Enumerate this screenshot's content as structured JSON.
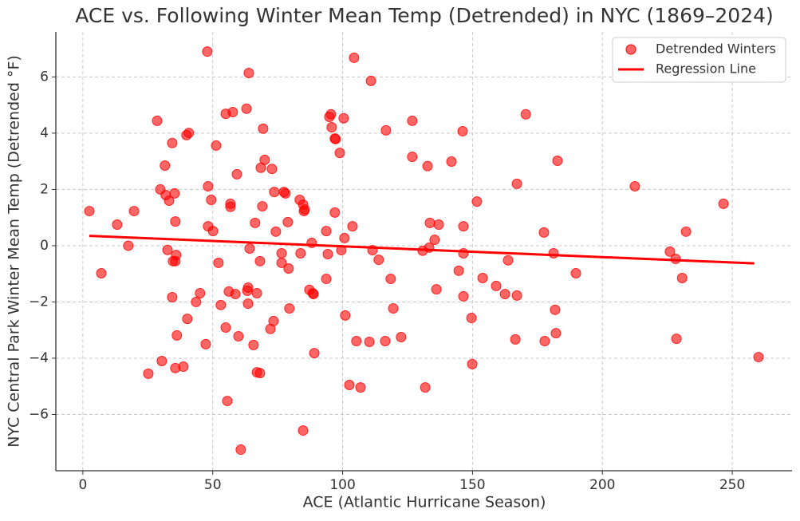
{
  "chart_data": {
    "type": "scatter",
    "title": "ACE vs. Following Winter Mean Temp (Detrended) in NYC (1869–2024)",
    "xlabel": "ACE (Atlantic Hurricane Season)",
    "ylabel": "NYC Central Park Winter Mean Temp (Detrended °F)",
    "xlim": [
      -10.4,
      273
    ],
    "ylim": [
      -8,
      7.6
    ],
    "xticks": [
      0,
      50,
      100,
      150,
      200,
      250
    ],
    "yticks": [
      {
        "value": -6,
        "label": "−6"
      },
      {
        "value": -4,
        "label": "−4"
      },
      {
        "value": -2,
        "label": "−2"
      },
      0,
      2,
      4,
      6
    ],
    "grid": true,
    "legend": "upper right",
    "series": [
      {
        "name": "Detrended Winters",
        "color": "#ff0000",
        "type": "scatter",
        "x": [
          2.5,
          7.1,
          13.2,
          17.5,
          19.7,
          25.2,
          28.6,
          29.8,
          30.4,
          31.6,
          31.9,
          32.6,
          33.2,
          34.4,
          34.4,
          34.7,
          35.3,
          35.6,
          35.6,
          35.6,
          35.9,
          36.2,
          38.7,
          39.9,
          40.8,
          40.2,
          43.6,
          45.1,
          47.3,
          47.9,
          48.2,
          48.2,
          49.4,
          50.1,
          51.3,
          52.2,
          53.1,
          55.0,
          55.0,
          55.6,
          56.2,
          56.8,
          56.8,
          57.7,
          58.7,
          59.3,
          59.9,
          60.8,
          63.0,
          63.3,
          63.6,
          63.6,
          63.9,
          64.2,
          65.7,
          66.3,
          67.0,
          67.0,
          68.2,
          68.2,
          68.5,
          69.1,
          69.4,
          70.0,
          72.2,
          72.8,
          73.4,
          73.7,
          74.3,
          76.5,
          76.5,
          77.4,
          78.0,
          78.9,
          79.2,
          79.5,
          83.5,
          83.8,
          84.8,
          84.8,
          85.1,
          85.4,
          87.2,
          88.1,
          88.5,
          88.8,
          89.1,
          93.7,
          93.7,
          94.3,
          94.9,
          95.5,
          95.8,
          97.0,
          97.3,
          97.0,
          98.9,
          99.5,
          100.4,
          100.7,
          101.0,
          102.6,
          103.8,
          104.4,
          105.3,
          106.9,
          110.3,
          110.9,
          111.5,
          113.9,
          116.4,
          116.7,
          118.5,
          119.5,
          122.5,
          126.8,
          126.8,
          130.8,
          131.8,
          132.7,
          133.3,
          133.6,
          135.4,
          136.1,
          137.0,
          141.9,
          144.7,
          146.2,
          146.5,
          146.5,
          146.5,
          149.6,
          149.9,
          151.7,
          153.9,
          159.1,
          162.5,
          163.7,
          166.5,
          167.1,
          167.1,
          170.5,
          177.5,
          177.8,
          181.2,
          181.8,
          182.1,
          182.7,
          189.8,
          212.5,
          226.0,
          228.2,
          228.5,
          230.7,
          232.2,
          246.6,
          260.1
        ],
        "values": [
          1.23,
          -0.98,
          0.75,
          0.0,
          1.23,
          -4.55,
          4.44,
          2.0,
          -4.1,
          2.85,
          1.8,
          -0.15,
          1.6,
          -1.83,
          3.65,
          -0.55,
          1.86,
          -0.55,
          0.86,
          -4.35,
          -0.33,
          -3.19,
          -4.3,
          3.93,
          4.01,
          -2.6,
          -2.0,
          -1.69,
          -3.5,
          6.9,
          2.11,
          0.69,
          1.63,
          0.52,
          3.56,
          -0.61,
          -2.11,
          -2.91,
          4.69,
          -5.52,
          -1.63,
          1.49,
          1.38,
          4.75,
          -1.72,
          2.54,
          -3.22,
          -7.25,
          4.87,
          -1.6,
          -2.06,
          -1.49,
          6.14,
          -0.1,
          -3.53,
          0.81,
          -4.5,
          -1.69,
          -4.53,
          -0.55,
          2.77,
          1.4,
          4.16,
          3.05,
          -2.96,
          2.73,
          -2.68,
          1.91,
          0.5,
          -0.27,
          -0.61,
          1.91,
          1.86,
          0.84,
          -0.81,
          -2.23,
          1.63,
          -0.27,
          -6.57,
          1.46,
          1.23,
          1.29,
          -1.57,
          0.1,
          -1.69,
          -1.72,
          -3.82,
          0.52,
          -1.18,
          -0.3,
          4.58,
          4.67,
          4.21,
          3.81,
          3.79,
          1.18,
          3.3,
          -0.16,
          4.53,
          0.27,
          -2.48,
          -4.95,
          0.69,
          6.68,
          -3.39,
          -5.04,
          -3.42,
          5.86,
          -0.16,
          -0.5,
          -3.39,
          4.1,
          -1.18,
          -2.23,
          -3.25,
          4.44,
          3.16,
          -0.18,
          -5.04,
          2.83,
          -0.07,
          0.81,
          0.21,
          -1.55,
          0.75,
          2.99,
          -0.89,
          4.07,
          -0.27,
          0.69,
          -1.8,
          -2.57,
          -4.21,
          1.57,
          -1.15,
          -1.43,
          -1.72,
          -0.52,
          -3.33,
          2.2,
          -1.77,
          4.67,
          0.47,
          -3.39,
          -0.27,
          -2.28,
          -3.11,
          3.02,
          -0.98,
          2.11,
          -0.21,
          -0.47,
          -3.31,
          -1.15,
          0.5,
          1.49,
          -3.96
        ]
      },
      {
        "name": "Regression Line",
        "color": "#ff0000",
        "type": "line",
        "x": [
          2.5,
          258.5
        ],
        "values": [
          0.35,
          -0.63
        ]
      }
    ]
  }
}
